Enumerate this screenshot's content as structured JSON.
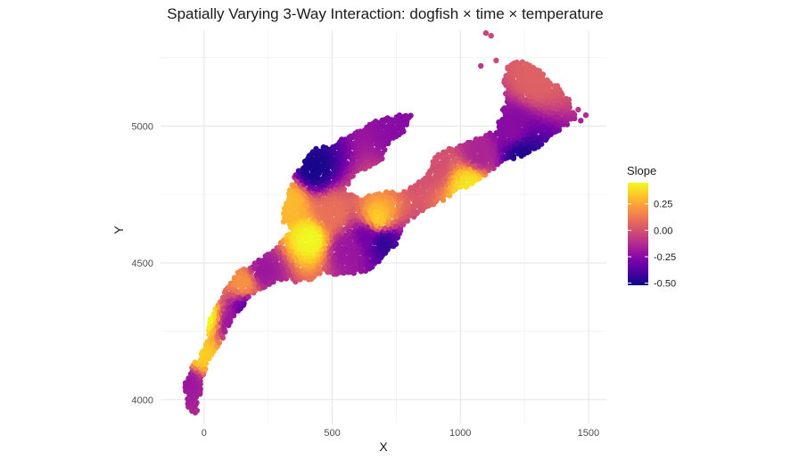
{
  "chart_data": {
    "type": "scatter",
    "title": "Spatially Varying 3-Way Interaction: dogfish × time × temperature",
    "xlabel": "X",
    "ylabel": "Y",
    "xlim": [
      -170,
      1570
    ],
    "ylim": [
      3910,
      5350
    ],
    "x_ticks": [
      0,
      500,
      1000,
      1500
    ],
    "x_tick_labels": [
      "0",
      "500",
      "1000",
      "1500"
    ],
    "y_ticks": [
      4000,
      4500,
      5000
    ],
    "y_tick_labels": [
      "4000",
      "4500",
      "5000"
    ],
    "grid": true,
    "legend": {
      "title": "Slope",
      "placement": "right",
      "min": -0.52,
      "max": 0.45,
      "ticks": [
        0.25,
        0.0,
        -0.25,
        -0.5
      ],
      "tick_labels": [
        "0.25",
        "0.00",
        "-0.25",
        "-0.50"
      ],
      "colormap": "plasma"
    },
    "colormap_hex": [
      "#0d0887",
      "#46039f",
      "#7201a8",
      "#9c179e",
      "#bd3786",
      "#d8576b",
      "#ed7953",
      "#fb9f3a",
      "#fdca26",
      "#f0f921"
    ],
    "polygon_description": "Y-shaped coastal domain: southwest arm, central basin, northwest inlet, northeast arm",
    "domain_outline": {
      "sw_arm": [
        [
          -65,
          4090
        ],
        [
          -40,
          4130
        ],
        [
          5,
          4190
        ],
        [
          20,
          4290
        ],
        [
          60,
          4360
        ],
        [
          120,
          4460
        ],
        [
          180,
          4490
        ],
        [
          260,
          4540
        ],
        [
          320,
          4600
        ],
        [
          370,
          4630
        ],
        [
          420,
          4630
        ],
        [
          440,
          4560
        ],
        [
          470,
          4540
        ],
        [
          480,
          4480
        ],
        [
          430,
          4440
        ],
        [
          360,
          4430
        ],
        [
          300,
          4440
        ],
        [
          250,
          4420
        ],
        [
          180,
          4370
        ],
        [
          110,
          4290
        ],
        [
          70,
          4220
        ],
        [
          20,
          4150
        ],
        [
          0,
          4080
        ],
        [
          -20,
          3990
        ],
        [
          -30,
          3950
        ],
        [
          -60,
          3960
        ],
        [
          -80,
          4060
        ]
      ],
      "central": [
        [
          300,
          4660
        ],
        [
          330,
          4760
        ],
        [
          350,
          4820
        ],
        [
          390,
          4880
        ],
        [
          440,
          4920
        ],
        [
          500,
          4930
        ],
        [
          550,
          4960
        ],
        [
          600,
          4980
        ],
        [
          650,
          5010
        ],
        [
          700,
          5030
        ],
        [
          760,
          5040
        ],
        [
          810,
          5040
        ],
        [
          780,
          4980
        ],
        [
          720,
          4940
        ],
        [
          690,
          4870
        ],
        [
          640,
          4850
        ],
        [
          600,
          4830
        ],
        [
          560,
          4780
        ],
        [
          520,
          4740
        ],
        [
          480,
          4690
        ],
        [
          440,
          4640
        ],
        [
          400,
          4620
        ],
        [
          340,
          4620
        ]
      ],
      "basin": [
        [
          400,
          4640
        ],
        [
          430,
          4700
        ],
        [
          470,
          4760
        ],
        [
          540,
          4760
        ],
        [
          620,
          4740
        ],
        [
          700,
          4760
        ],
        [
          760,
          4760
        ],
        [
          820,
          4780
        ],
        [
          870,
          4820
        ],
        [
          900,
          4890
        ],
        [
          960,
          4920
        ],
        [
          1050,
          4950
        ],
        [
          1130,
          4980
        ],
        [
          1160,
          5040
        ],
        [
          1180,
          5100
        ],
        [
          1170,
          5170
        ],
        [
          1190,
          5230
        ],
        [
          1240,
          5240
        ],
        [
          1330,
          5190
        ],
        [
          1420,
          5110
        ],
        [
          1450,
          5030
        ],
        [
          1400,
          4990
        ],
        [
          1350,
          4960
        ],
        [
          1300,
          4920
        ],
        [
          1240,
          4890
        ],
        [
          1170,
          4870
        ],
        [
          1110,
          4830
        ],
        [
          1040,
          4780
        ],
        [
          980,
          4760
        ],
        [
          920,
          4720
        ],
        [
          850,
          4690
        ],
        [
          780,
          4640
        ],
        [
          750,
          4570
        ],
        [
          700,
          4520
        ],
        [
          640,
          4470
        ],
        [
          560,
          4450
        ],
        [
          480,
          4460
        ],
        [
          440,
          4520
        ],
        [
          410,
          4580
        ]
      ],
      "ne_stray": [
        [
          1100,
          5340
        ],
        [
          1120,
          5330
        ],
        [
          1080,
          5220
        ],
        [
          1140,
          5240
        ],
        [
          1460,
          5060
        ],
        [
          1490,
          5040
        ],
        [
          1470,
          5020
        ]
      ]
    },
    "hotspots": [
      {
        "x": 430,
        "y": 4840,
        "value": -0.5
      },
      {
        "x": 700,
        "y": 4580,
        "value": -0.45
      },
      {
        "x": 640,
        "y": 4600,
        "value": -0.3
      },
      {
        "x": 1240,
        "y": 4900,
        "value": -0.48
      },
      {
        "x": 1200,
        "y": 4980,
        "value": -0.25
      },
      {
        "x": 1080,
        "y": 4900,
        "value": -0.15
      },
      {
        "x": 780,
        "y": 4990,
        "value": -0.25
      },
      {
        "x": 680,
        "y": 4660,
        "value": 0.35
      },
      {
        "x": 1040,
        "y": 4790,
        "value": 0.4
      },
      {
        "x": 420,
        "y": 4590,
        "value": 0.45
      },
      {
        "x": 10,
        "y": 4300,
        "value": 0.45
      },
      {
        "x": -10,
        "y": 4160,
        "value": 0.35
      },
      {
        "x": 160,
        "y": 4430,
        "value": 0.2
      },
      {
        "x": 230,
        "y": 4470,
        "value": -0.2
      },
      {
        "x": 170,
        "y": 4330,
        "value": -0.35
      },
      {
        "x": 110,
        "y": 4280,
        "value": -0.2
      },
      {
        "x": 560,
        "y": 4550,
        "value": -0.2
      },
      {
        "x": 340,
        "y": 4730,
        "value": 0.3
      },
      {
        "x": 1300,
        "y": 5180,
        "value": 0.05
      },
      {
        "x": -60,
        "y": 4070,
        "value": -0.2
      },
      {
        "x": 500,
        "y": 4680,
        "value": 0.1
      },
      {
        "x": 900,
        "y": 4860,
        "value": 0.0
      }
    ]
  }
}
